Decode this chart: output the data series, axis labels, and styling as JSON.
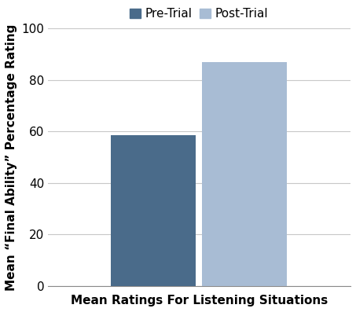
{
  "categories": [
    "Pre-Trial",
    "Post-Trial"
  ],
  "values": [
    58.5,
    87.0
  ],
  "bar_colors": [
    "#4a6b8a",
    "#a8bcd4"
  ],
  "legend_labels": [
    "Pre-Trial",
    "Post-Trial"
  ],
  "legend_colors": [
    "#4a6b8a",
    "#a8bcd4"
  ],
  "xlabel": "Mean Ratings For Listening Situations",
  "ylabel": "Mean “Final Ability” Percentage Rating",
  "ylim": [
    0,
    100
  ],
  "yticks": [
    0,
    20,
    40,
    60,
    80,
    100
  ],
  "axis_label_fontsize": 11,
  "tick_fontsize": 11,
  "legend_fontsize": 11,
  "background_color": "#ffffff",
  "bar_width": 0.28,
  "bar_positions": [
    0.35,
    0.65
  ]
}
